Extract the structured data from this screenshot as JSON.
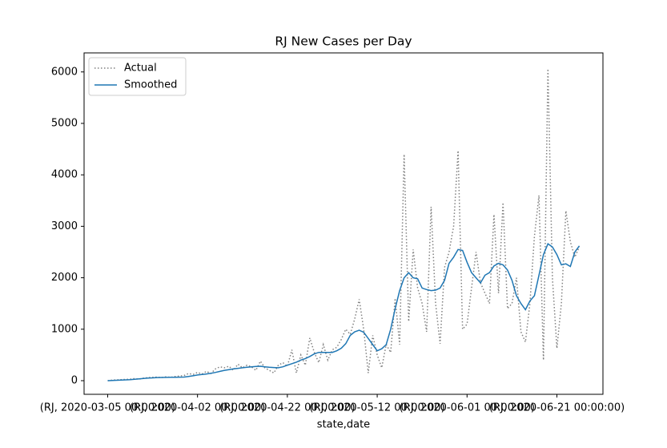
{
  "chart_data": {
    "type": "line",
    "title": "RJ New Cases per Day",
    "xlabel": "state,date",
    "xlim": [
      -5.25,
      110.25
    ],
    "xticks": [
      {
        "value": 0,
        "label": "(RJ, 2020-03-05 00:00:00)"
      },
      {
        "value": 20,
        "label": "(RJ, 2020-04-02 00:00:00)"
      },
      {
        "value": 40,
        "label": "(RJ, 2020-04-22 00:00:00)"
      },
      {
        "value": 60,
        "label": "(RJ, 2020-05-12 00:00:00)"
      },
      {
        "value": 80,
        "label": "(RJ, 2020-06-01 00:00:00)"
      },
      {
        "value": 100,
        "label": "(RJ, 2020-06-21 00:00:00)"
      }
    ],
    "ylim": [
      -265,
      6370
    ],
    "yticks": [
      0,
      1000,
      2000,
      3000,
      4000,
      5000,
      6000
    ],
    "legend": "upper left",
    "series": [
      {
        "name": "Actual",
        "color": "#808080",
        "dash": "dotted",
        "values": [
          0,
          10,
          15,
          20,
          25,
          30,
          40,
          30,
          50,
          60,
          65,
          70,
          60,
          75,
          65,
          80,
          90,
          100,
          140,
          120,
          160,
          130,
          180,
          140,
          230,
          270,
          250,
          280,
          200,
          320,
          250,
          300,
          270,
          200,
          380,
          250,
          200,
          150,
          300,
          350,
          280,
          600,
          150,
          500,
          300,
          830,
          550,
          350,
          700,
          400,
          600,
          650,
          800,
          1000,
          900,
          1200,
          1580,
          1000,
          150,
          880,
          500,
          250,
          700,
          550,
          1600,
          700,
          4400,
          1150,
          2550,
          1800,
          1500,
          950,
          3380,
          1500,
          720,
          2200,
          2500,
          3000,
          4470,
          1000,
          1100,
          1800,
          2500,
          1900,
          1700,
          1500,
          3230,
          1700,
          3460,
          1400,
          1500,
          2000,
          950,
          750,
          1500,
          2800,
          3600,
          400,
          6060,
          2000,
          630,
          1500,
          3300,
          2700,
          2400,
          2600
        ]
      },
      {
        "name": "Smoothed",
        "color": "#1f77b4",
        "dash": "solid",
        "values": [
          0,
          5,
          8,
          12,
          15,
          20,
          28,
          35,
          42,
          50,
          55,
          60,
          62,
          64,
          65,
          66,
          68,
          70,
          80,
          95,
          110,
          120,
          130,
          145,
          160,
          180,
          200,
          215,
          230,
          240,
          250,
          260,
          270,
          275,
          280,
          270,
          260,
          255,
          250,
          270,
          300,
          330,
          360,
          400,
          430,
          470,
          520,
          550,
          550,
          550,
          550,
          580,
          630,
          720,
          880,
          950,
          980,
          940,
          820,
          700,
          580,
          620,
          700,
          1000,
          1400,
          1750,
          2000,
          2100,
          2000,
          1980,
          1800,
          1770,
          1750,
          1760,
          1800,
          1950,
          2280,
          2400,
          2550,
          2530,
          2300,
          2100,
          2000,
          1900,
          2050,
          2100,
          2230,
          2280,
          2250,
          2150,
          1950,
          1650,
          1500,
          1380,
          1550,
          1650,
          2050,
          2450,
          2660,
          2600,
          2450,
          2250,
          2270,
          2220,
          2500,
          2620
        ]
      }
    ]
  }
}
